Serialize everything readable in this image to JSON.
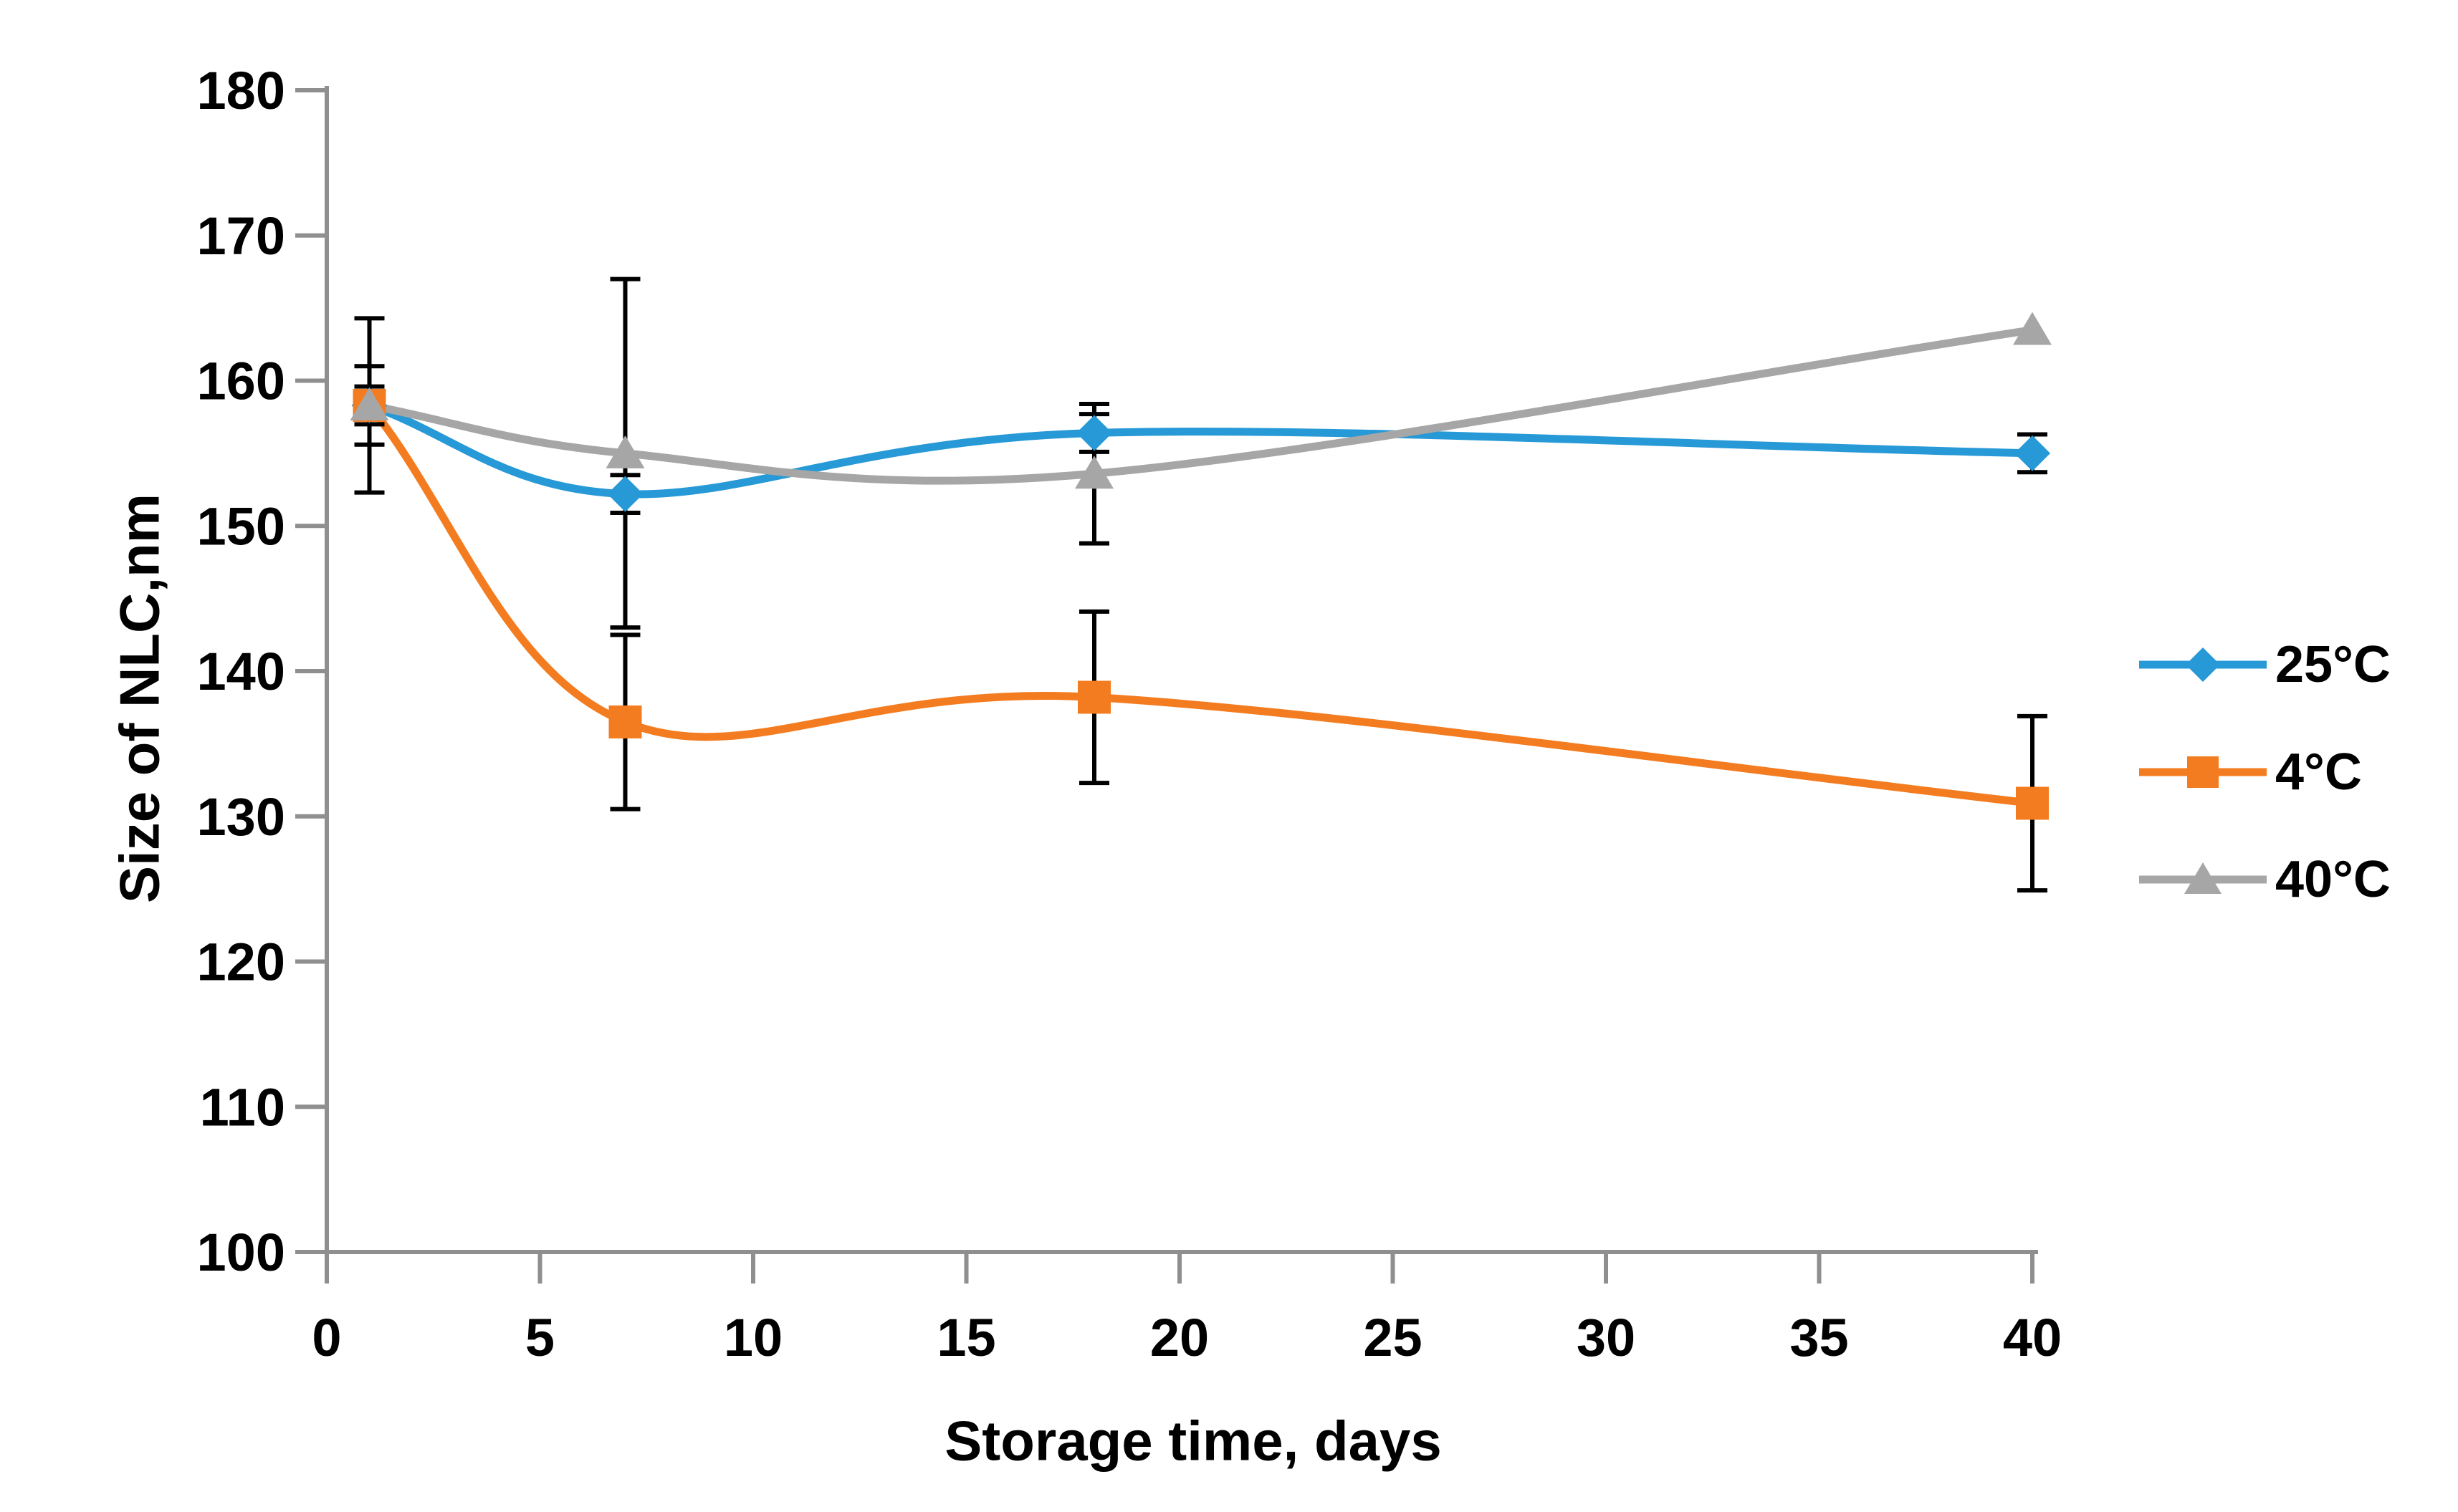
{
  "chart_data": {
    "type": "line",
    "title": "",
    "xlabel": "Storage time, days",
    "ylabel": "Size of NLC,nm",
    "xlim": [
      0,
      40
    ],
    "ylim": [
      100,
      180
    ],
    "x_ticks": [
      0,
      5,
      10,
      15,
      20,
      25,
      30,
      35,
      40
    ],
    "y_ticks": [
      100,
      110,
      120,
      130,
      140,
      150,
      160,
      170,
      180
    ],
    "grid": false,
    "legend_position": "right",
    "smooth_lines": true,
    "x": [
      1,
      7,
      18,
      40
    ],
    "series": [
      {
        "name": "25°C",
        "color": "#2699D6",
        "marker": "diamond",
        "values": [
          158.3,
          152.2,
          156.4,
          155.0
        ],
        "err": [
          2.7,
          1.3,
          1.3,
          1.3
        ]
      },
      {
        "name": "4°C",
        "color": "#F47C20",
        "marker": "square",
        "values": [
          158.3,
          136.5,
          138.2,
          130.9
        ],
        "err": [
          6.0,
          6.0,
          5.9,
          6.0
        ]
      },
      {
        "name": "40°C",
        "color": "#A6A6A6",
        "marker": "triangle",
        "values": [
          158.3,
          155.0,
          153.6,
          163.5
        ],
        "err": [
          1.3,
          12.0,
          4.8,
          0
        ]
      }
    ],
    "error_bar_color": "#000000",
    "axis_color": "#8F8F8F",
    "tick_label_color": "#000000"
  }
}
